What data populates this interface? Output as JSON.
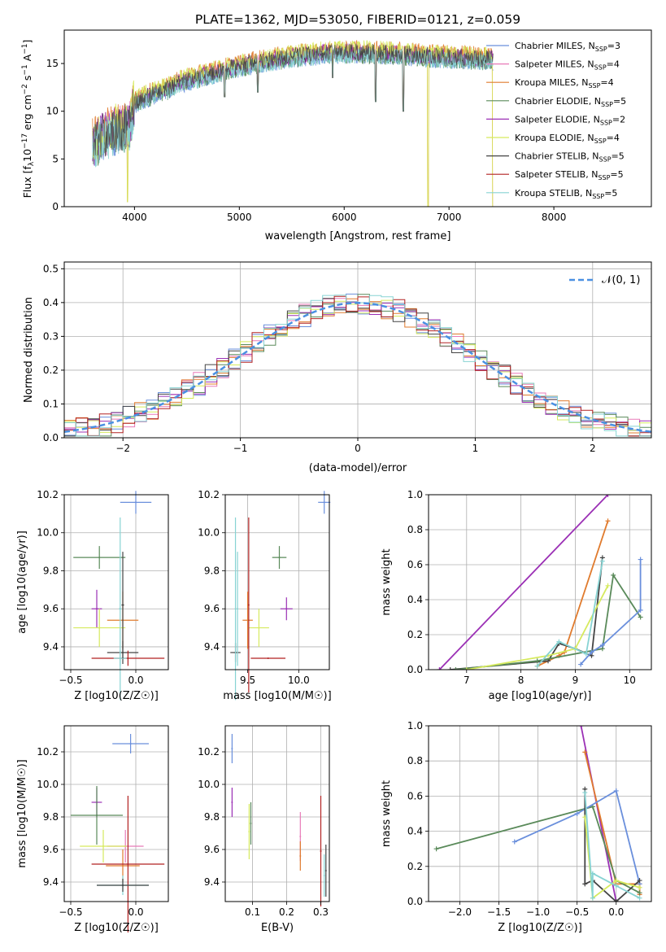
{
  "figure": {
    "title": "PLATE=1362, MJD=53050, FIBERID=0121, z=0.059"
  },
  "colors": {
    "Chabrier MILES": "#6a8fdc",
    "Salpeter MILES": "#e87ab8",
    "Kroupa MILES": "#e07b2e",
    "Chabrier ELODIE": "#5a8a5a",
    "Salpeter ELODIE": "#9b30b5",
    "Kroupa ELODIE": "#d6ea5e",
    "Chabrier STELIB": "#444444",
    "Salpeter STELIB": "#b22222",
    "Kroupa STELIB": "#87d3d3",
    "normal": "#4a90e2"
  },
  "chart_data": [
    {
      "id": "spectrum",
      "type": "line",
      "xlabel": "wavelength [Angstrom, rest frame]",
      "ylabel": "Flux [f",
      "ylabel_parts": {
        "a": "Flux [f",
        "sub": "λ",
        "b": "10",
        "sup": "−17",
        "c": " erg cm",
        "sup2": "−2",
        "d": " s",
        "sup3": "−1",
        "e": " A",
        "sup4": "−1",
        "f": "]"
      },
      "xlim": [
        3330,
        8930
      ],
      "ylim": [
        0,
        18.5
      ],
      "xticks": [
        4000,
        5000,
        6000,
        7000,
        8000
      ],
      "yticks": [
        0,
        5,
        10,
        15
      ],
      "data_range": [
        3600,
        7420
      ],
      "legend_loc": "upper right",
      "legend": [
        {
          "name": "Chabrier MILES",
          "nssp": "3"
        },
        {
          "name": "Salpeter MILES",
          "nssp": "4"
        },
        {
          "name": "Kroupa MILES",
          "nssp": "4"
        },
        {
          "name": "Chabrier ELODIE",
          "nssp": "5"
        },
        {
          "name": "Salpeter ELODIE",
          "nssp": "2"
        },
        {
          "name": "Kroupa ELODIE",
          "nssp": "4"
        },
        {
          "name": "Chabrier STELIB",
          "nssp": "5"
        },
        {
          "name": "Salpeter STELIB",
          "nssp": "5"
        },
        {
          "name": "Kroupa STELIB",
          "nssp": "5"
        }
      ],
      "nssp_label": "SSP",
      "continuum_knots": {
        "x": [
          3600,
          3700,
          3800,
          3950,
          4000,
          4200,
          4300,
          4400,
          4600,
          4800,
          5000,
          5200,
          5400,
          5600,
          5800,
          6000,
          6200,
          6400,
          6600,
          6800,
          7000,
          7200,
          7420
        ],
        "y": [
          6.5,
          7.5,
          8.0,
          8.5,
          11.0,
          12.0,
          12.3,
          13.0,
          13.6,
          14.2,
          14.8,
          15.2,
          15.6,
          15.9,
          16.1,
          16.2,
          16.2,
          16.1,
          16.0,
          15.8,
          15.7,
          15.6,
          15.5
        ]
      },
      "absorption_dips": [
        {
          "x": 3934,
          "y": 0.5
        },
        {
          "x": 4861,
          "y": 11.5
        },
        {
          "x": 5175,
          "y": 12.0
        },
        {
          "x": 5890,
          "y": 13.5
        },
        {
          "x": 6300,
          "y": 11.0
        },
        {
          "x": 6563,
          "y": 10.0
        },
        {
          "x": 6800,
          "y": 0.0
        },
        {
          "x": 7420,
          "y": 0.0
        }
      ]
    },
    {
      "id": "residuals",
      "type": "line",
      "xlabel": "(data-model)/error",
      "ylabel": "Normed distribution",
      "xlim": [
        -2.5,
        2.5
      ],
      "ylim": [
        0,
        0.52
      ],
      "xticks": [
        -2,
        -1,
        0,
        1,
        2
      ],
      "xticklabels": [
        "−2",
        "−1",
        "0",
        "1",
        "2"
      ],
      "yticks": [
        0.0,
        0.1,
        0.2,
        0.3,
        0.4,
        0.5
      ],
      "yticklabels": [
        "0.0",
        "0.1",
        "0.2",
        "0.3",
        "0.4",
        "0.5"
      ],
      "grid": true,
      "bin_width": 0.1,
      "legend_loc": "upper right",
      "normal_label": "𝒩(0, 1)"
    },
    {
      "id": "age_vs_Z",
      "type": "scatter",
      "xlabel": "Z [log10(Z/Z☉)]",
      "ylabel": "age  [log10(age/yr)]",
      "xlim": [
        -0.55,
        0.25
      ],
      "ylim": [
        9.28,
        10.2
      ],
      "xticks": [
        -0.5,
        0.0
      ],
      "xticklabels": [
        "−0.5",
        "0.0"
      ],
      "yticks": [
        9.4,
        9.6,
        9.8,
        10.0,
        10.2
      ],
      "yticklabels": [
        "9.4",
        "9.6",
        "9.8",
        "10.0",
        "10.2"
      ],
      "points": [
        {
          "model": "Chabrier MILES",
          "x": 0.0,
          "xerr": 0.12,
          "y": 10.16,
          "yerr": 0.06
        },
        {
          "model": "Kroupa MILES",
          "x": -0.1,
          "xerr": 0.12,
          "y": 9.54,
          "yerr": 0.15
        },
        {
          "model": "Chabrier ELODIE",
          "x": -0.28,
          "xerr": 0.2,
          "y": 9.87,
          "yerr": 0.06
        },
        {
          "model": "Salpeter ELODIE",
          "x": -0.3,
          "xerr": 0.04,
          "y": 9.6,
          "yerr": 0.1
        },
        {
          "model": "Kroupa ELODIE",
          "x": -0.28,
          "xerr": 0.2,
          "y": 9.5,
          "yerr": 0.1
        },
        {
          "model": "Chabrier STELIB",
          "x": -0.1,
          "xerr": 0.12,
          "y": 9.37,
          "yerr": 0.06
        },
        {
          "model": "Salpeter STELIB",
          "x": -0.06,
          "xerr": 0.28,
          "y": 9.34,
          "yerr": 0.04
        },
        {
          "model": "Kroupa STELIB",
          "x": -0.12,
          "xerr": 0.05,
          "y": 9.34,
          "yerr": 0.04
        },
        {
          "model": "Chabrier STELIB",
          "x": -0.1,
          "xerr": 0.01,
          "y": 9.62,
          "yerr": 0.28
        },
        {
          "model": "Kroupa STELIB",
          "x": -0.12,
          "xerr": 0.01,
          "y": 9.6,
          "yerr": 0.48
        }
      ]
    },
    {
      "id": "age_vs_mass",
      "type": "scatter",
      "xlabel": "mass [log10(M/M☉)]",
      "ylabel": "",
      "xlim": [
        9.28,
        10.3
      ],
      "ylim": [
        9.28,
        10.2
      ],
      "xticks": [
        9.5,
        10.0
      ],
      "xticklabels": [
        "9.5",
        "10.0"
      ],
      "yticks": [
        9.4,
        9.6,
        9.8,
        10.0,
        10.2
      ],
      "yticklabels": [
        "9.4",
        "9.6",
        "9.8",
        "10.0",
        "10.2"
      ],
      "points": [
        {
          "model": "Chabrier MILES",
          "x": 10.25,
          "xerr": 0.06,
          "y": 10.16,
          "yerr": 0.06
        },
        {
          "model": "Kroupa MILES",
          "x": 9.5,
          "xerr": 0.05,
          "y": 9.54,
          "yerr": 0.15
        },
        {
          "model": "Chabrier ELODIE",
          "x": 9.81,
          "xerr": 0.07,
          "y": 9.87,
          "yerr": 0.06
        },
        {
          "model": "Salpeter ELODIE",
          "x": 9.88,
          "xerr": 0.06,
          "y": 9.6,
          "yerr": 0.06
        },
        {
          "model": "Kroupa ELODIE",
          "x": 9.61,
          "xerr": 0.1,
          "y": 9.5,
          "yerr": 0.1
        },
        {
          "model": "Chabrier STELIB",
          "x": 9.38,
          "xerr": 0.05,
          "y": 9.37,
          "yerr": 0.05
        },
        {
          "model": "Salpeter STELIB",
          "x": 9.51,
          "xerr": 0.0,
          "y": 9.62,
          "yerr": 0.46
        },
        {
          "model": "Salpeter STELIB",
          "x": 9.7,
          "xerr": 0.17,
          "y": 9.34,
          "yerr": 0.0
        },
        {
          "model": "Kroupa STELIB",
          "x": 9.38,
          "xerr": 0.0,
          "y": 9.6,
          "yerr": 0.48
        },
        {
          "model": "Kroupa STELIB",
          "x": 9.4,
          "xerr": 0.0,
          "y": 9.6,
          "yerr": 0.3
        }
      ]
    },
    {
      "id": "mass_weight_vs_age",
      "type": "line",
      "xlabel": "age  [log10(age/yr)]",
      "ylabel": "mass weight",
      "xlim": [
        6.3,
        10.4
      ],
      "ylim": [
        0,
        1.0
      ],
      "xticks": [
        7,
        8,
        9,
        10
      ],
      "xticklabels": [
        "7",
        "8",
        "9",
        "10"
      ],
      "yticks": [
        0.0,
        0.2,
        0.4,
        0.6,
        0.8,
        1.0
      ],
      "yticklabels": [
        "0.0",
        "0.2",
        "0.4",
        "0.6",
        "0.8",
        "1.0"
      ],
      "grid": true,
      "series": [
        {
          "model": "Salpeter ELODIE",
          "x": [
            6.5,
            9.6
          ],
          "y": [
            0.0,
            1.0
          ]
        },
        {
          "model": "Kroupa MILES",
          "x": [
            8.3,
            8.7,
            8.8,
            9.6
          ],
          "y": [
            0.02,
            0.08,
            0.1,
            0.85
          ]
        },
        {
          "model": "Chabrier STELIB",
          "x": [
            6.7,
            8.5,
            8.7,
            9.0,
            9.3,
            9.5
          ],
          "y": [
            0.0,
            0.05,
            0.15,
            0.12,
            0.08,
            0.64
          ]
        },
        {
          "model": "Chabrier ELODIE",
          "x": [
            6.8,
            8.3,
            9.5,
            9.7,
            10.2
          ],
          "y": [
            0.0,
            0.05,
            0.12,
            0.54,
            0.3
          ]
        },
        {
          "model": "Chabrier MILES",
          "x": [
            9.1,
            9.3,
            9.5,
            10.2,
            10.2
          ],
          "y": [
            0.03,
            0.1,
            0.14,
            0.34,
            0.63
          ]
        },
        {
          "model": "Kroupa ELODIE",
          "x": [
            7.0,
            8.5,
            9.0,
            9.6
          ],
          "y": [
            0.0,
            0.08,
            0.12,
            0.48
          ]
        },
        {
          "model": "Kroupa STELIB",
          "x": [
            8.3,
            8.7,
            9.2,
            9.5
          ],
          "y": [
            0.02,
            0.16,
            0.09,
            0.62
          ]
        }
      ]
    },
    {
      "id": "mass_vs_Z",
      "type": "scatter",
      "xlabel": "Z [log10(Z/Z☉)]",
      "ylabel": "mass [log10(M/M☉)]",
      "xlim": [
        -0.55,
        0.25
      ],
      "ylim": [
        9.28,
        10.36
      ],
      "xticks": [
        -0.5,
        0.0
      ],
      "xticklabels": [
        "−0.5",
        "0.0"
      ],
      "yticks": [
        9.4,
        9.6,
        9.8,
        10.0,
        10.2
      ],
      "yticklabels": [
        "9.4",
        "9.6",
        "9.8",
        "10.0",
        "10.2"
      ],
      "points": [
        {
          "model": "Chabrier MILES",
          "x": -0.04,
          "xerr": 0.14,
          "y": 10.25,
          "yerr": 0.06
        },
        {
          "model": "Salpeter ELODIE",
          "x": -0.3,
          "xerr": 0.04,
          "y": 9.89,
          "yerr": 0.09
        },
        {
          "model": "Chabrier ELODIE",
          "x": -0.3,
          "xerr": 0.2,
          "y": 9.81,
          "yerr": 0.18
        },
        {
          "model": "Salpeter MILES",
          "x": -0.08,
          "xerr": 0.14,
          "y": 9.62,
          "yerr": 0.1
        },
        {
          "model": "Kroupa ELODIE",
          "x": -0.25,
          "xerr": 0.18,
          "y": 9.62,
          "yerr": 0.1
        },
        {
          "model": "Kroupa MILES",
          "x": -0.1,
          "xerr": 0.13,
          "y": 9.5,
          "yerr": 0.1
        },
        {
          "model": "Salpeter STELIB",
          "x": -0.06,
          "xerr": 0.28,
          "y": 9.51,
          "yerr": 0.42
        },
        {
          "model": "Kroupa STELIB",
          "x": -0.1,
          "xerr": 0.2,
          "y": 9.38,
          "yerr": 0.06
        },
        {
          "model": "Chabrier STELIB",
          "x": -0.1,
          "xerr": 0.2,
          "y": 9.38,
          "yerr": 0.04
        }
      ]
    },
    {
      "id": "mass_vs_EBV",
      "type": "scatter",
      "xlabel": "E(B-V)",
      "ylabel": "",
      "xlim": [
        0.02,
        0.325
      ],
      "ylim": [
        9.28,
        10.36
      ],
      "xticks": [
        0.1,
        0.2,
        0.3
      ],
      "xticklabels": [
        "0.1",
        "0.2",
        "0.3"
      ],
      "yticks": [
        9.4,
        9.6,
        9.8,
        10.0,
        10.2
      ],
      "yticklabels": [
        "9.4",
        "9.6",
        "9.8",
        "10.0",
        "10.2"
      ],
      "points": [
        {
          "model": "Chabrier MILES",
          "x": 0.04,
          "xerr": 0.0,
          "y": 10.22,
          "yerr": 0.09
        },
        {
          "model": "Salpeter ELODIE",
          "x": 0.04,
          "xerr": 0.0,
          "y": 9.89,
          "yerr": 0.09
        },
        {
          "model": "Chabrier ELODIE",
          "x": 0.095,
          "xerr": 0.0,
          "y": 9.76,
          "yerr": 0.13
        },
        {
          "model": "Kroupa ELODIE",
          "x": 0.09,
          "xerr": 0.0,
          "y": 9.71,
          "yerr": 0.17
        },
        {
          "model": "Salpeter MILES",
          "x": 0.24,
          "xerr": 0.0,
          "y": 9.68,
          "yerr": 0.15
        },
        {
          "model": "Kroupa MILES",
          "x": 0.24,
          "xerr": 0.0,
          "y": 9.56,
          "yerr": 0.09
        },
        {
          "model": "Salpeter STELIB",
          "x": 0.3,
          "xerr": 0.0,
          "y": 9.59,
          "yerr": 0.34
        },
        {
          "model": "Kroupa STELIB",
          "x": 0.31,
          "xerr": 0.0,
          "y": 9.44,
          "yerr": 0.13
        },
        {
          "model": "Chabrier STELIB",
          "x": 0.315,
          "xerr": 0.0,
          "y": 9.47,
          "yerr": 0.16
        }
      ]
    },
    {
      "id": "mass_weight_vs_Z",
      "type": "line",
      "xlabel": "Z [log10(Z/Z☉)]",
      "ylabel": "mass weight",
      "xlim": [
        -2.4,
        0.45
      ],
      "ylim": [
        0,
        1.0
      ],
      "xticks": [
        -2.0,
        -1.5,
        -1.0,
        -0.5,
        0.0
      ],
      "xticklabels": [
        "−2.0",
        "−1.5",
        "−1.0",
        "−0.5",
        "0.0"
      ],
      "yticks": [
        0.0,
        0.2,
        0.4,
        0.6,
        0.8,
        1.0
      ],
      "yticklabels": [
        "0.0",
        "0.2",
        "0.4",
        "0.6",
        "0.8",
        "1.0"
      ],
      "grid": true,
      "series": [
        {
          "model": "Salpeter ELODIE",
          "x": [
            -0.45,
            0.0
          ],
          "y": [
            1.0,
            0.0
          ]
        },
        {
          "model": "Kroupa MILES",
          "x": [
            -0.4,
            0.0,
            0.3,
            0.3
          ],
          "y": [
            0.85,
            0.1,
            0.1,
            0.04
          ]
        },
        {
          "model": "Chabrier ELODIE",
          "x": [
            -2.3,
            -0.3,
            0.0,
            0.3
          ],
          "y": [
            0.3,
            0.54,
            0.12,
            0.05
          ]
        },
        {
          "model": "Chabrier MILES",
          "x": [
            -1.3,
            -0.5,
            0.0,
            0.3
          ],
          "y": [
            0.34,
            0.5,
            0.63,
            0.1
          ]
        },
        {
          "model": "Chabrier STELIB",
          "x": [
            -0.4,
            -0.4,
            -0.3,
            0.0,
            0.3
          ],
          "y": [
            0.64,
            0.1,
            0.12,
            0.0,
            0.12
          ]
        },
        {
          "model": "Kroupa ELODIE",
          "x": [
            -0.4,
            -0.3,
            0.0,
            0.3
          ],
          "y": [
            0.48,
            0.02,
            0.12,
            0.08
          ]
        },
        {
          "model": "Kroupa STELIB",
          "x": [
            -0.4,
            -0.3,
            -0.3,
            0.0,
            0.3
          ],
          "y": [
            0.62,
            0.02,
            0.16,
            0.09,
            0.02
          ]
        }
      ]
    }
  ]
}
